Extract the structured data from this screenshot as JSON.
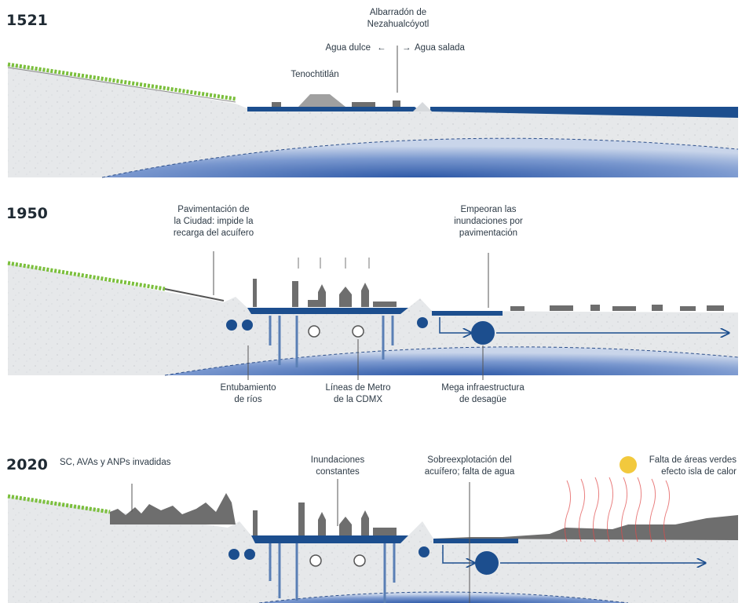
{
  "panels": [
    {
      "year": "1521",
      "labels": {
        "dam_line1": "Albarradón de",
        "dam_line2": "Nezahualcóyotl",
        "fresh": "Agua dulce",
        "salt": "Agua salada",
        "city": "Tenochtitlán"
      }
    },
    {
      "year": "1950",
      "labels": {
        "paving_1": "Pavimentación de",
        "paving_2": "la Ciudad: impide la",
        "paving_3": "recarga del acuífero",
        "floods_1": "Empeoran las",
        "floods_2": "inundaciones por",
        "floods_3": "pavimentación",
        "rivers_1": "Entubamiento",
        "rivers_2": "de ríos",
        "metro_1": "Líneas de Metro",
        "metro_2": "de la CDMX",
        "drain_1": "Mega infraestructura",
        "drain_2": "de desagüe"
      }
    },
    {
      "year": "2020",
      "labels": {
        "invaded": "SC, AVAs y ANPs invadidas",
        "constant_1": "Inundaciones",
        "constant_2": "constantes",
        "overexp_1": "Sobreexplotación del",
        "overexp_2": "acuífero; falta de agua",
        "heat_1": "Falta de áreas verdes",
        "heat_2": "efecto isla de calor"
      }
    }
  ],
  "colors": {
    "ground": "#e6e8ea",
    "water": "#1c4e8e",
    "aquifer": "#5d7fbe",
    "buildings": "#6e6e6e",
    "vegetation": "#7bbf3c",
    "sun": "#f2c93d",
    "heat": "#e04a4a"
  }
}
